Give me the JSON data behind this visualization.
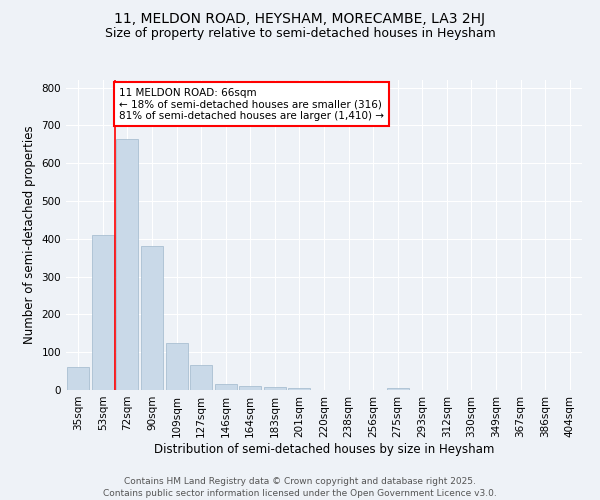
{
  "title": "11, MELDON ROAD, HEYSHAM, MORECAMBE, LA3 2HJ",
  "subtitle": "Size of property relative to semi-detached houses in Heysham",
  "xlabel": "Distribution of semi-detached houses by size in Heysham",
  "ylabel": "Number of semi-detached properties",
  "bar_color": "#c9d9e8",
  "bar_edge_color": "#a0b8cc",
  "categories": [
    "35sqm",
    "53sqm",
    "72sqm",
    "90sqm",
    "109sqm",
    "127sqm",
    "146sqm",
    "164sqm",
    "183sqm",
    "201sqm",
    "220sqm",
    "238sqm",
    "256sqm",
    "275sqm",
    "293sqm",
    "312sqm",
    "330sqm",
    "349sqm",
    "367sqm",
    "386sqm",
    "404sqm"
  ],
  "values": [
    62,
    410,
    665,
    380,
    125,
    65,
    15,
    11,
    8,
    5,
    0,
    0,
    0,
    5,
    0,
    0,
    0,
    0,
    0,
    0,
    0
  ],
  "vline_x": 1.5,
  "annotation_text": "11 MELDON ROAD: 66sqm\n← 18% of semi-detached houses are smaller (316)\n81% of semi-detached houses are larger (1,410) →",
  "ylim": [
    0,
    820
  ],
  "yticks": [
    0,
    100,
    200,
    300,
    400,
    500,
    600,
    700,
    800
  ],
  "footer_line1": "Contains HM Land Registry data © Crown copyright and database right 2025.",
  "footer_line2": "Contains public sector information licensed under the Open Government Licence v3.0.",
  "background_color": "#eef2f7",
  "grid_color": "#ffffff",
  "title_fontsize": 10,
  "subtitle_fontsize": 9,
  "axis_label_fontsize": 8.5,
  "tick_fontsize": 7.5,
  "annotation_fontsize": 7.5,
  "footer_fontsize": 6.5
}
